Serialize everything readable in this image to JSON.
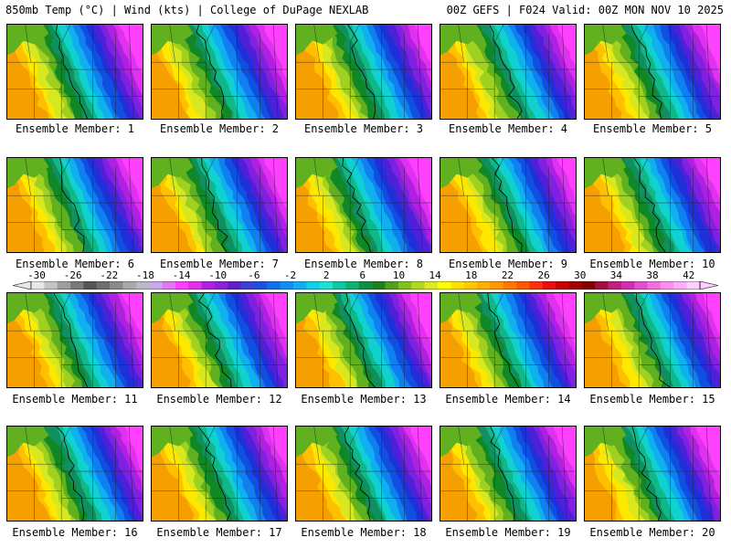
{
  "header": {
    "left": "850mb Temp (°C) | Wind (kts) | College of DuPage NEXLAB",
    "right": "00Z GEFS | F024 Valid: 00Z MON NOV 10 2025"
  },
  "members": [
    {
      "label": "Ensemble Member: 1"
    },
    {
      "label": "Ensemble Member: 2"
    },
    {
      "label": "Ensemble Member: 3"
    },
    {
      "label": "Ensemble Member: 4"
    },
    {
      "label": "Ensemble Member: 5"
    },
    {
      "label": "Ensemble Member: 6"
    },
    {
      "label": "Ensemble Member: 7"
    },
    {
      "label": "Ensemble Member: 8"
    },
    {
      "label": "Ensemble Member: 9"
    },
    {
      "label": "Ensemble Member: 10"
    },
    {
      "label": "Ensemble Member: 11"
    },
    {
      "label": "Ensemble Member: 12"
    },
    {
      "label": "Ensemble Member: 13"
    },
    {
      "label": "Ensemble Member: 14"
    },
    {
      "label": "Ensemble Member: 15"
    },
    {
      "label": "Ensemble Member: 16"
    },
    {
      "label": "Ensemble Member: 17"
    },
    {
      "label": "Ensemble Member: 18"
    },
    {
      "label": "Ensemble Member: 19"
    },
    {
      "label": "Ensemble Member: 20"
    }
  ],
  "colorbar": {
    "labels": [
      "-30",
      "-26",
      "-22",
      "-18",
      "-14",
      "-10",
      "-6",
      "-2",
      "2",
      "6",
      "10",
      "14",
      "18",
      "22",
      "26",
      "30",
      "34",
      "38",
      "42"
    ],
    "colors": [
      "#e8e8e8",
      "#c4c4c4",
      "#9e9e9e",
      "#7a7a7a",
      "#555555",
      "#6e6e6e",
      "#8a8a8a",
      "#a8a8a8",
      "#b8b8c8",
      "#c8a8e8",
      "#e078f0",
      "#ff40ff",
      "#e030e8",
      "#b020e0",
      "#9020d8",
      "#6020c8",
      "#4040d0",
      "#2050e0",
      "#1070e8",
      "#1090f0",
      "#10b0f0",
      "#10d0e8",
      "#20e0d0",
      "#10c8a0",
      "#10b070",
      "#109040",
      "#208020",
      "#50a020",
      "#80c020",
      "#b0d820",
      "#e0e820",
      "#ffff00",
      "#ffe000",
      "#ffc800",
      "#ffb000",
      "#ff9800",
      "#ff7800",
      "#ff5800",
      "#ff3010",
      "#e81010",
      "#c80000",
      "#a00000",
      "#800000",
      "#a01040",
      "#c02080",
      "#d030b0",
      "#e050d0",
      "#f070e0",
      "#ff90f0",
      "#ffb0f8",
      "#ffd0ff"
    ]
  },
  "field_colors": [
    "#f5a000",
    "#ffc000",
    "#ffe800",
    "#d8e820",
    "#a0d020",
    "#60b020",
    "#108828",
    "#109060",
    "#10b888",
    "#10d0d0",
    "#10b0f0",
    "#1080f0",
    "#1050e0",
    "#2030d8",
    "#5020d8",
    "#8020e0",
    "#b020e0",
    "#e030f0",
    "#ff40ff"
  ]
}
